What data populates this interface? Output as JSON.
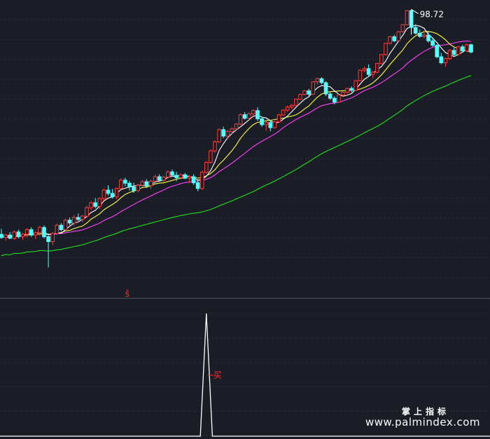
{
  "colors": {
    "background": "#1b1d26",
    "grid": "#3a3c47",
    "divider": "#4a4c56",
    "up_candle": "#ff3b3b",
    "down_candle": "#54ffff",
    "ma5": "#ffffff",
    "ma10": "#ffff40",
    "ma20": "#ff40ff",
    "ma60": "#20e020",
    "indicator": "#ffffff",
    "marker": "#ff3030"
  },
  "chart_data": [
    {
      "type": "candlestick",
      "panel": "main",
      "y_range": [
        10,
        103
      ],
      "annotations": {
        "high_label": "98.72",
        "signal_label": "ŝ"
      },
      "series": [
        {
          "name": "",
          "role": "MA5",
          "color": "#ffffff"
        },
        {
          "name": "",
          "role": "MA10",
          "color": "#ffff40"
        },
        {
          "name": "",
          "role": "MA20",
          "color": "#ff40ff"
        },
        {
          "name": "",
          "role": "MA60",
          "color": "#20e020"
        }
      ],
      "candles": [
        [
          15.5,
          16.2,
          14.9,
          15.1
        ],
        [
          15.1,
          15.6,
          14.7,
          15.4
        ],
        [
          15.4,
          15.8,
          14.9,
          15.0
        ],
        [
          15.0,
          16.0,
          14.8,
          15.8
        ],
        [
          15.8,
          16.1,
          15.0,
          15.2
        ],
        [
          15.2,
          15.7,
          14.8,
          15.5
        ],
        [
          15.5,
          16.3,
          15.1,
          16.1
        ],
        [
          16.1,
          16.4,
          15.2,
          15.4
        ],
        [
          15.4,
          15.9,
          14.9,
          15.7
        ],
        [
          15.7,
          16.6,
          15.3,
          16.4
        ],
        [
          16.4,
          16.7,
          15.0,
          15.2
        ],
        [
          15.2,
          15.6,
          11.8,
          14.6
        ],
        [
          14.6,
          15.8,
          14.2,
          15.6
        ],
        [
          15.6,
          16.9,
          15.4,
          16.7
        ],
        [
          16.7,
          17.0,
          15.9,
          16.1
        ],
        [
          16.1,
          17.6,
          15.8,
          17.4
        ],
        [
          17.4,
          17.8,
          16.7,
          17.0
        ],
        [
          17.0,
          18.2,
          16.6,
          17.8
        ],
        [
          17.8,
          18.4,
          17.3,
          17.5
        ],
        [
          17.5,
          18.2,
          17.1,
          18.0
        ],
        [
          18.0,
          19.6,
          17.8,
          19.3
        ],
        [
          19.3,
          20.4,
          18.9,
          20.1
        ],
        [
          20.1,
          20.9,
          19.2,
          19.5
        ],
        [
          19.5,
          21.0,
          19.1,
          20.8
        ],
        [
          20.8,
          22.6,
          20.5,
          22.3
        ],
        [
          22.3,
          23.2,
          21.3,
          21.7
        ],
        [
          21.7,
          22.5,
          20.8,
          21.1
        ],
        [
          21.1,
          22.8,
          20.7,
          22.6
        ],
        [
          22.6,
          24.6,
          22.4,
          24.2
        ],
        [
          24.2,
          24.7,
          23.0,
          23.6
        ],
        [
          23.6,
          24.0,
          22.2,
          22.9
        ],
        [
          22.9,
          23.7,
          21.8,
          22.2
        ],
        [
          22.2,
          23.5,
          21.9,
          23.2
        ],
        [
          23.2,
          24.3,
          22.8,
          23.9
        ],
        [
          23.9,
          24.4,
          22.7,
          23.1
        ],
        [
          23.1,
          24.3,
          22.5,
          24.0
        ],
        [
          24.0,
          25.3,
          23.6,
          24.9
        ],
        [
          24.9,
          25.4,
          23.9,
          24.2
        ],
        [
          24.2,
          25.1,
          23.8,
          24.8
        ],
        [
          24.8,
          26.2,
          24.6,
          25.9
        ],
        [
          25.9,
          26.4,
          24.9,
          25.2
        ],
        [
          25.2,
          25.9,
          24.0,
          24.7
        ],
        [
          24.7,
          25.6,
          24.4,
          25.3
        ],
        [
          25.3,
          25.7,
          24.4,
          24.6
        ],
        [
          24.6,
          25.2,
          23.6,
          24.9
        ],
        [
          24.9,
          25.4,
          23.3,
          23.7
        ],
        [
          23.7,
          24.2,
          22.1,
          22.6
        ],
        [
          22.6,
          26.2,
          22.3,
          25.8
        ],
        [
          25.8,
          28.3,
          25.5,
          28.0
        ],
        [
          28.0,
          31.2,
          27.7,
          30.8
        ],
        [
          30.8,
          33.6,
          30.3,
          33.2
        ],
        [
          33.2,
          37.1,
          32.8,
          36.7
        ],
        [
          36.7,
          37.6,
          34.2,
          34.8
        ],
        [
          34.8,
          36.6,
          34.1,
          36.1
        ],
        [
          36.1,
          37.4,
          35.3,
          36.9
        ],
        [
          36.9,
          38.7,
          36.5,
          38.4
        ],
        [
          38.4,
          41.8,
          38.1,
          41.5
        ],
        [
          41.5,
          42.4,
          39.8,
          40.3
        ],
        [
          40.3,
          42.2,
          39.8,
          41.8
        ],
        [
          41.8,
          43.4,
          41.0,
          42.9
        ],
        [
          42.9,
          44.1,
          39.4,
          40.1
        ],
        [
          40.1,
          40.6,
          37.6,
          38.2
        ],
        [
          38.2,
          39.4,
          36.3,
          38.9
        ],
        [
          38.9,
          39.6,
          36.2,
          37.3
        ],
        [
          37.3,
          39.4,
          37.0,
          39.1
        ],
        [
          39.1,
          41.8,
          38.8,
          41.4
        ],
        [
          41.4,
          43.3,
          41.1,
          43.1
        ],
        [
          43.1,
          44.7,
          42.4,
          44.2
        ],
        [
          44.2,
          45.3,
          43.3,
          44.8
        ],
        [
          44.8,
          47.4,
          44.4,
          47.1
        ],
        [
          47.1,
          49.4,
          46.7,
          49.0
        ],
        [
          49.0,
          50.8,
          48.6,
          50.5
        ],
        [
          50.5,
          51.4,
          48.4,
          49.1
        ],
        [
          49.1,
          54.7,
          48.8,
          54.4
        ],
        [
          54.4,
          56.2,
          53.1,
          55.8
        ],
        [
          55.8,
          56.4,
          53.3,
          54.0
        ],
        [
          54.0,
          54.6,
          48.3,
          49.2
        ],
        [
          49.2,
          50.0,
          46.8,
          47.5
        ],
        [
          47.5,
          48.3,
          45.2,
          46.0
        ],
        [
          46.0,
          49.2,
          45.7,
          48.8
        ],
        [
          48.8,
          50.3,
          48.0,
          49.9
        ],
        [
          49.9,
          51.8,
          49.3,
          51.5
        ],
        [
          51.5,
          52.4,
          49.9,
          50.7
        ],
        [
          50.7,
          55.3,
          50.4,
          54.9
        ],
        [
          54.9,
          60.2,
          54.6,
          59.8
        ],
        [
          59.8,
          61.5,
          58.9,
          60.6
        ],
        [
          60.6,
          62.8,
          56.9,
          57.8
        ],
        [
          57.8,
          59.3,
          56.1,
          58.8
        ],
        [
          58.8,
          63.6,
          58.4,
          63.2
        ],
        [
          63.2,
          68.4,
          62.8,
          68.0
        ],
        [
          68.0,
          75.2,
          67.5,
          74.6
        ],
        [
          74.6,
          79.5,
          73.9,
          78.8
        ],
        [
          78.8,
          80.1,
          75.4,
          76.2
        ],
        [
          76.2,
          82.6,
          75.8,
          82.1
        ],
        [
          82.1,
          87.6,
          81.6,
          87.0
        ],
        [
          87.0,
          98.3,
          86.6,
          97.7
        ],
        [
          97.7,
          98.72,
          84.2,
          85.1
        ],
        [
          85.1,
          87.2,
          80.4,
          81.1
        ],
        [
          81.1,
          83.6,
          78.2,
          79.0
        ],
        [
          79.0,
          83.3,
          77.9,
          79.9
        ],
        [
          79.9,
          82.1,
          75.1,
          76.2
        ],
        [
          76.2,
          78.3,
          72.6,
          73.4
        ],
        [
          73.4,
          74.1,
          66.1,
          66.8
        ],
        [
          66.8,
          69.0,
          62.8,
          63.6
        ],
        [
          63.6,
          66.4,
          61.6,
          65.8
        ],
        [
          65.8,
          71.2,
          65.2,
          70.4
        ],
        [
          70.4,
          72.0,
          67.2,
          68.1
        ],
        [
          68.1,
          73.2,
          67.5,
          72.5
        ],
        [
          72.5,
          73.8,
          69.3,
          70.1
        ],
        [
          70.1,
          74.6,
          69.6,
          73.8
        ],
        [
          73.8,
          74.4,
          68.8,
          69.5
        ]
      ]
    },
    {
      "type": "line",
      "panel": "indicator",
      "y_range": [
        0,
        1
      ],
      "annotations": {
        "signal_label": "买"
      },
      "series": [
        {
          "name": "",
          "values": [
            0,
            0,
            0,
            0,
            0,
            0,
            0,
            0,
            0,
            0,
            0,
            0,
            0,
            0,
            0,
            0,
            0,
            0,
            0,
            0,
            0,
            0,
            0,
            0,
            0,
            0,
            0,
            0,
            0,
            0,
            0,
            0,
            0,
            0,
            0,
            0,
            0,
            0,
            0,
            0,
            0,
            0,
            0,
            0,
            0,
            0,
            0,
            0,
            1,
            0,
            0,
            0,
            0,
            0,
            0,
            0,
            0,
            0,
            0,
            0,
            0,
            0,
            0,
            0,
            0,
            0,
            0,
            0,
            0,
            0,
            0,
            0,
            0,
            0,
            0,
            0,
            0,
            0,
            0,
            0,
            0,
            0,
            0,
            0,
            0,
            0,
            0,
            0,
            0,
            0,
            0,
            0,
            0,
            0,
            0,
            0,
            0,
            0,
            0,
            0,
            0,
            0,
            0,
            0,
            0,
            0,
            0,
            0,
            0,
            0,
            0
          ]
        }
      ]
    }
  ],
  "watermark": {
    "cn": "掌上指标",
    "url": "www.palmindex.com"
  }
}
